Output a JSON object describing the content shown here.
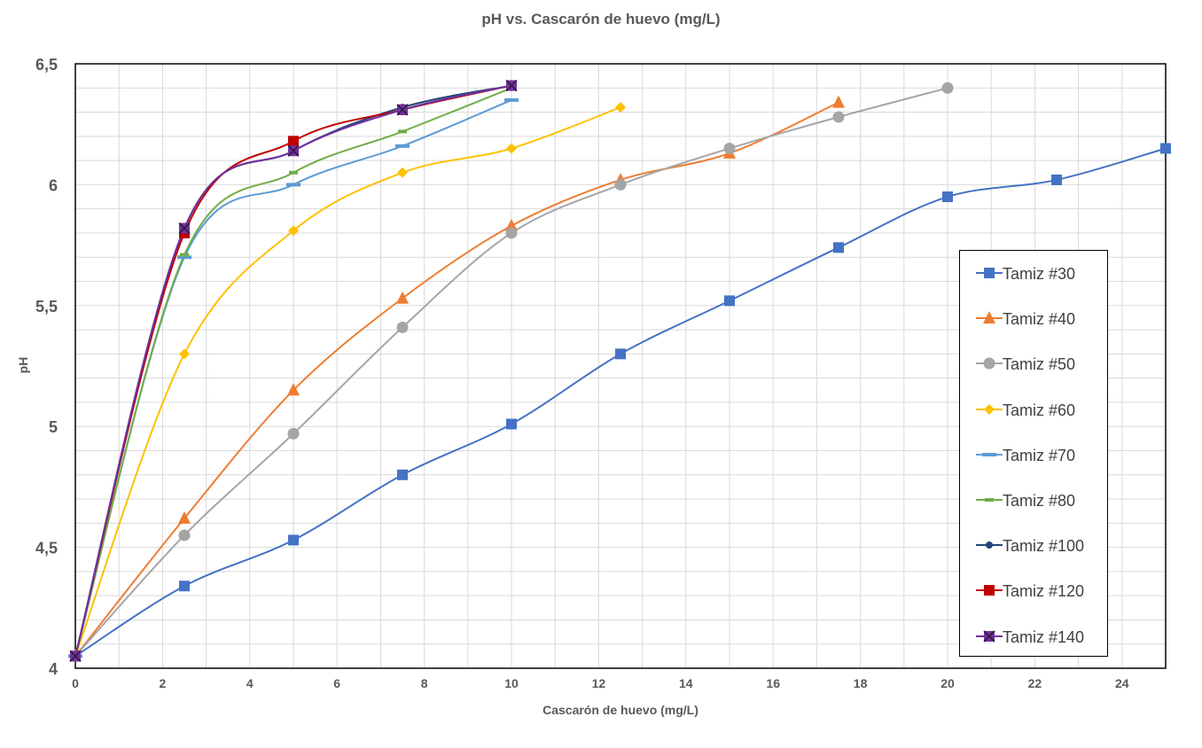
{
  "chart_data": {
    "type": "line",
    "title": "pH vs. Cascarón de huevo (mg/L)",
    "xlabel": "Cascarón de huevo (mg/L)",
    "ylabel": "pH",
    "xlim": [
      0,
      25
    ],
    "ylim": [
      4,
      6.5
    ],
    "x_ticks": [
      "0",
      "2",
      "4",
      "6",
      "8",
      "10",
      "12",
      "14",
      "16",
      "18",
      "20",
      "22",
      "24"
    ],
    "y_ticks": [
      "4",
      "4,5",
      "5",
      "5,5",
      "6",
      "6,5"
    ],
    "grid": true,
    "legend_position": "right",
    "series": [
      {
        "name": "Tamiz #30",
        "color": "#4472C4",
        "marker": "square",
        "x": [
          0,
          2.5,
          5,
          7.5,
          10,
          12.5,
          15,
          17.5,
          20,
          22.5,
          25
        ],
        "y": [
          4.05,
          4.34,
          4.53,
          4.8,
          5.01,
          5.3,
          5.52,
          5.74,
          5.95,
          6.02,
          6.15
        ]
      },
      {
        "name": "Tamiz #40",
        "color": "#ED7D31",
        "marker": "triangle",
        "x": [
          0,
          2.5,
          5,
          7.5,
          10,
          12.5,
          15,
          17.5
        ],
        "y": [
          4.05,
          4.62,
          5.15,
          5.53,
          5.83,
          6.02,
          6.13,
          6.34
        ]
      },
      {
        "name": "Tamiz #50",
        "color": "#A5A5A5",
        "marker": "circle",
        "x": [
          0,
          2.5,
          5,
          7.5,
          10,
          12.5,
          15,
          17.5,
          20
        ],
        "y": [
          4.05,
          4.55,
          4.97,
          5.41,
          5.8,
          6.0,
          6.15,
          6.28,
          6.4
        ]
      },
      {
        "name": "Tamiz #60",
        "color": "#FFC000",
        "marker": "diamond",
        "x": [
          0,
          2.5,
          5,
          7.5,
          10,
          12.5
        ],
        "y": [
          4.05,
          5.3,
          5.81,
          6.05,
          6.15,
          6.32
        ]
      },
      {
        "name": "Tamiz #70",
        "color": "#5B9BD5",
        "marker": "dash",
        "x": [
          0,
          2.5,
          5,
          7.5,
          10
        ],
        "y": [
          4.05,
          5.7,
          6.0,
          6.16,
          6.35
        ]
      },
      {
        "name": "Tamiz #80",
        "color": "#70AD47",
        "marker": "dash-small",
        "x": [
          0,
          2.5,
          5,
          7.5,
          10
        ],
        "y": [
          4.05,
          5.71,
          6.05,
          6.22,
          6.4
        ]
      },
      {
        "name": "Tamiz #100",
        "color": "#264478",
        "marker": "dot",
        "x": [
          0,
          2.5,
          5,
          7.5,
          10
        ],
        "y": [
          4.05,
          5.82,
          6.14,
          6.32,
          6.41
        ]
      },
      {
        "name": "Tamiz #120",
        "color": "#C00000",
        "marker": "square",
        "x": [
          0,
          2.5,
          5,
          7.5,
          10
        ],
        "y": [
          4.05,
          5.8,
          6.18,
          6.31,
          6.41
        ]
      },
      {
        "name": "Tamiz #140",
        "color": "#7030A0",
        "marker": "x-square",
        "x": [
          0,
          2.5,
          5,
          7.5,
          10
        ],
        "y": [
          4.05,
          5.82,
          6.14,
          6.31,
          6.41
        ]
      }
    ]
  }
}
